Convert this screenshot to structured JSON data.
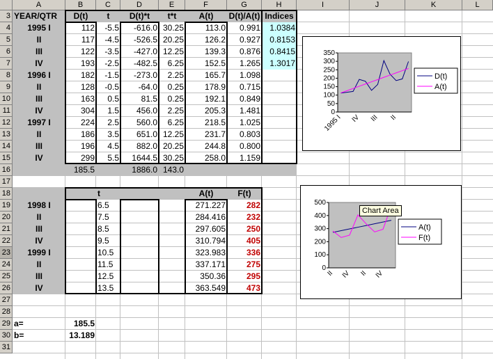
{
  "columns": [
    "A",
    "B",
    "C",
    "D",
    "E",
    "F",
    "G",
    "H",
    "I",
    "J",
    "K",
    "L"
  ],
  "rows": [
    "3",
    "4",
    "5",
    "6",
    "7",
    "8",
    "9",
    "10",
    "11",
    "12",
    "13",
    "14",
    "15",
    "16",
    "17",
    "18",
    "19",
    "20",
    "21",
    "22",
    "23",
    "24",
    "25",
    "26",
    "27",
    "28",
    "29",
    "30",
    "31"
  ],
  "top_table": {
    "headers": [
      "YEAR/QTR",
      "D(t)",
      "t",
      "D(t)*t",
      "t*t",
      "A(t)",
      "D(t)/A(t)",
      "Indices"
    ],
    "rows": [
      [
        "1995 I",
        "112",
        "-5.5",
        "-616.0",
        "30.25",
        "113.0",
        "0.991",
        "1.0384"
      ],
      [
        "II",
        "117",
        "-4.5",
        "-526.5",
        "20.25",
        "126.2",
        "0.927",
        "0.8153"
      ],
      [
        "III",
        "122",
        "-3.5",
        "-427.0",
        "12.25",
        "139.3",
        "0.876",
        "0.8415"
      ],
      [
        "IV",
        "193",
        "-2.5",
        "-482.5",
        "6.25",
        "152.5",
        "1.265",
        "1.3017"
      ],
      [
        "1996 I",
        "182",
        "-1.5",
        "-273.0",
        "2.25",
        "165.7",
        "1.098",
        ""
      ],
      [
        "II",
        "128",
        "-0.5",
        "-64.0",
        "0.25",
        "178.9",
        "0.715",
        ""
      ],
      [
        "III",
        "163",
        "0.5",
        "81.5",
        "0.25",
        "192.1",
        "0.849",
        ""
      ],
      [
        "IV",
        "304",
        "1.5",
        "456.0",
        "2.25",
        "205.3",
        "1.481",
        ""
      ],
      [
        "1997 I",
        "224",
        "2.5",
        "560.0",
        "6.25",
        "218.5",
        "1.025",
        ""
      ],
      [
        "II",
        "186",
        "3.5",
        "651.0",
        "12.25",
        "231.7",
        "0.803",
        ""
      ],
      [
        "III",
        "196",
        "4.5",
        "882.0",
        "20.25",
        "244.8",
        "0.800",
        ""
      ],
      [
        "IV",
        "299",
        "5.5",
        "1644.5",
        "30.25",
        "258.0",
        "1.159",
        ""
      ]
    ],
    "totals": [
      "",
      "185.5",
      "",
      "1886.0",
      "143.0",
      "",
      "",
      ""
    ]
  },
  "bottom_table": {
    "headers": [
      "",
      "",
      "t",
      "",
      "",
      "A(t)",
      "F(t)"
    ],
    "rows": [
      [
        "1998 I",
        "",
        "6.5",
        "",
        "",
        "271.227",
        "282"
      ],
      [
        "II",
        "",
        "7.5",
        "",
        "",
        "284.416",
        "232"
      ],
      [
        "III",
        "",
        "8.5",
        "",
        "",
        "297.605",
        "250"
      ],
      [
        "IV",
        "",
        "9.5",
        "",
        "",
        "310.794",
        "405"
      ],
      [
        "1999 I",
        "",
        "10.5",
        "",
        "",
        "323.983",
        "336"
      ],
      [
        "II",
        "",
        "11.5",
        "",
        "",
        "337.171",
        "275"
      ],
      [
        "III",
        "",
        "12.5",
        "",
        "",
        "350.36",
        "295"
      ],
      [
        "IV",
        "",
        "13.5",
        "",
        "",
        "363.549",
        "473"
      ]
    ]
  },
  "params": [
    {
      "label": "a=",
      "value": "185.5"
    },
    {
      "label": "b=",
      "value": "13.189"
    }
  ],
  "tooltip": "Chart Area",
  "colors": {
    "d_series": "#000080",
    "a_series": "#ff00ff",
    "plot_bg": "#c0c0c0"
  },
  "chart_data": [
    {
      "type": "line",
      "categories": [
        "1995 I",
        "II",
        "III",
        "IV",
        "1996 I",
        "II",
        "III",
        "IV",
        "1997 I",
        "II",
        "III",
        "IV"
      ],
      "tick_labels": [
        "1995 I",
        "IV",
        "III",
        "II"
      ],
      "ylim": [
        0,
        350
      ],
      "yticks": [
        "0",
        "50",
        "100",
        "150",
        "200",
        "250",
        "300",
        "350"
      ],
      "series": [
        {
          "name": "D(t)",
          "values": [
            112,
            117,
            122,
            193,
            182,
            128,
            163,
            304,
            224,
            186,
            196,
            299
          ]
        },
        {
          "name": "A(t)",
          "values": [
            113.0,
            126.2,
            139.3,
            152.5,
            165.7,
            178.9,
            192.1,
            205.3,
            218.5,
            231.7,
            244.8,
            258.0
          ]
        }
      ],
      "legend": "right"
    },
    {
      "type": "line",
      "categories": [
        "1998 I",
        "II",
        "III",
        "IV",
        "1999 I",
        "II",
        "III",
        "IV"
      ],
      "tick_labels": [
        "II",
        "IV",
        "II",
        "IV"
      ],
      "ylim": [
        0,
        500
      ],
      "yticks": [
        "0",
        "100",
        "200",
        "300",
        "400",
        "500"
      ],
      "series": [
        {
          "name": "A(t)",
          "values": [
            271.227,
            284.416,
            297.605,
            310.794,
            323.983,
            337.171,
            350.36,
            363.549
          ]
        },
        {
          "name": "F(t)",
          "values": [
            282,
            232,
            250,
            405,
            336,
            275,
            295,
            473
          ]
        }
      ],
      "legend": "right"
    }
  ]
}
